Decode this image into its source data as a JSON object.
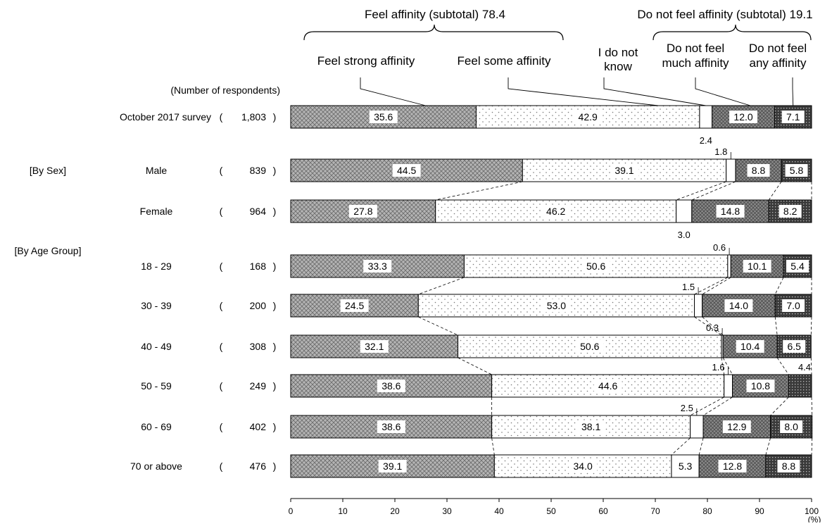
{
  "chart_data": {
    "type": "bar",
    "orientation": "horizontal",
    "stacked": true,
    "xlim": [
      0,
      100
    ],
    "xticks": [
      "0",
      "10",
      "20",
      "30",
      "40",
      "50",
      "60",
      "70",
      "80",
      "90",
      "100"
    ],
    "xunit": "(%)",
    "respondents_header": "(Number of respondents)",
    "group_headers": {
      "feel": "Feel affinity (subtotal) 78.4",
      "notfeel": "Do not feel affinity (subtotal) 19.1"
    },
    "series": [
      {
        "name": "Feel strong affinity",
        "legend_lines": [
          "Feel strong affinity"
        ],
        "color": "#aaaaaa",
        "pattern": "crosshatch"
      },
      {
        "name": "Feel some affinity",
        "legend_lines": [
          "Feel some affinity"
        ],
        "color": "#ffffff",
        "pattern": "dots"
      },
      {
        "name": "I do not know",
        "legend_lines": [
          "I do not",
          "know"
        ],
        "color": "#ffffff",
        "pattern": "none"
      },
      {
        "name": "Do not feel much affinity",
        "legend_lines": [
          "Do not feel",
          "much affinity"
        ],
        "color": "#8c8c8c",
        "pattern": "crosshatch-dark"
      },
      {
        "name": "Do not feel any affinity",
        "legend_lines": [
          "Do not feel",
          "any affinity"
        ],
        "color": "#444444",
        "pattern": "dense"
      }
    ],
    "sections": [
      {
        "label": "",
        "rows": [
          0
        ]
      },
      {
        "label": "[By Sex]",
        "rows": [
          1,
          2
        ]
      },
      {
        "label": "[By Age Group]",
        "rows": [
          3,
          4,
          5,
          6,
          7,
          8
        ]
      }
    ],
    "rows": [
      {
        "name": "October 2017 survey",
        "n": "1,803",
        "values": [
          35.6,
          42.9,
          2.4,
          12.0,
          7.1
        ],
        "labels": [
          "35.6",
          "42.9",
          "2.4",
          "12.0",
          "7.1"
        ]
      },
      {
        "name": "Male",
        "n": "839",
        "values": [
          44.5,
          39.1,
          1.8,
          8.8,
          5.8
        ],
        "labels": [
          "44.5",
          "39.1",
          "1.8",
          "8.8",
          "5.8"
        ]
      },
      {
        "name": "Female",
        "n": "964",
        "values": [
          27.8,
          46.2,
          3.0,
          14.8,
          8.2
        ],
        "labels": [
          "27.8",
          "46.2",
          "3.0",
          "14.8",
          "8.2"
        ]
      },
      {
        "name": "18 - 29",
        "n": "168",
        "values": [
          33.3,
          50.6,
          0.6,
          10.1,
          5.4
        ],
        "labels": [
          "33.3",
          "50.6",
          "0.6",
          "10.1",
          "5.4"
        ]
      },
      {
        "name": "30 - 39",
        "n": "200",
        "values": [
          24.5,
          53.0,
          1.5,
          14.0,
          7.0
        ],
        "labels": [
          "24.5",
          "53.0",
          "1.5",
          "14.0",
          "7.0"
        ]
      },
      {
        "name": "40 - 49",
        "n": "308",
        "values": [
          32.1,
          50.6,
          0.3,
          10.4,
          6.5
        ],
        "labels": [
          "32.1",
          "50.6",
          "0.3",
          "10.4",
          "6.5"
        ]
      },
      {
        "name": "50 - 59",
        "n": "249",
        "values": [
          38.6,
          44.6,
          1.6,
          10.8,
          4.4
        ],
        "labels": [
          "38.6",
          "44.6",
          "1.6",
          "10.8",
          "4.4"
        ]
      },
      {
        "name": "60 - 69",
        "n": "402",
        "values": [
          38.6,
          38.1,
          2.5,
          12.9,
          8.0
        ],
        "labels": [
          "38.6",
          "38.1",
          "2.5",
          "12.9",
          "8.0"
        ]
      },
      {
        "name": "70 or above",
        "n": "476",
        "values": [
          39.1,
          34.0,
          5.3,
          12.8,
          8.8
        ],
        "labels": [
          "39.1",
          "34.0",
          "5.3",
          "12.8",
          "8.8"
        ]
      }
    ]
  }
}
